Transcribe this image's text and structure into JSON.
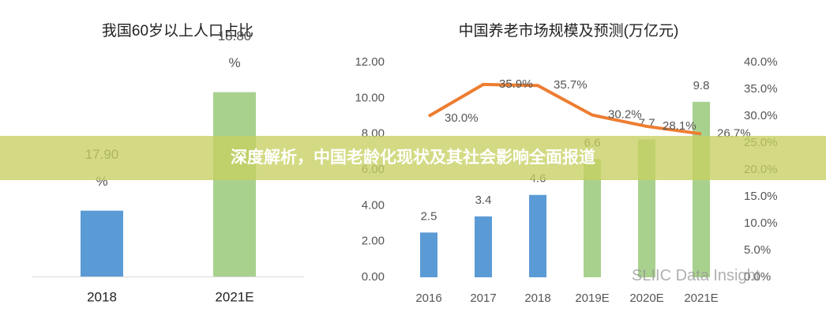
{
  "chart_data": [
    {
      "type": "bar",
      "title": "我国60岁以上人口占比",
      "categories": [
        "2018",
        "2021E"
      ],
      "values": [
        17.9,
        18.8
      ],
      "value_labels": [
        "17.90 %",
        "18.80 %"
      ],
      "colors": [
        "#5b9bd5",
        "#a9d18e"
      ],
      "ylim": [
        17.4,
        18.9
      ]
    },
    {
      "type": "bar",
      "title": "中国养老市场规模及预测(万亿元)",
      "categories": [
        "2016",
        "2017",
        "2018",
        "2019E",
        "2020E",
        "2021E"
      ],
      "series": [
        {
          "type": "bar",
          "colors": [
            "#5b9bd5",
            "#5b9bd5",
            "#5b9bd5",
            "#a9d18e",
            "#a9d18e",
            "#a9d18e"
          ],
          "values": [
            2.5,
            3.4,
            4.6,
            6.6,
            7.7,
            9.8
          ]
        },
        {
          "type": "line",
          "axis": "y2",
          "color": "#ed7d31",
          "values": [
            30.0,
            35.9,
            35.7,
            30.2,
            28.1,
            26.7
          ],
          "value_labels": [
            "30.0%",
            "35.9%",
            "35.7%",
            "30.2%",
            "28.1%",
            "26.7%"
          ]
        }
      ],
      "ylim": [
        0,
        12
      ],
      "yticks": [
        {
          "value": 0,
          "label": "0.00"
        },
        {
          "value": 2,
          "label": "2.00"
        },
        {
          "value": 4,
          "label": "4.00"
        },
        {
          "value": 6,
          "label": "6.00"
        },
        {
          "value": 8,
          "label": "8.00"
        },
        {
          "value": 10,
          "label": "10.00"
        },
        {
          "value": 12,
          "label": "12.00"
        }
      ],
      "y2lim": [
        0,
        40
      ],
      "y2ticks": [
        {
          "value": 0,
          "label": "0.0%"
        },
        {
          "value": 5,
          "label": "5.0%"
        },
        {
          "value": 10,
          "label": "10.0%"
        },
        {
          "value": 15,
          "label": "15.0%"
        },
        {
          "value": 20,
          "label": "20.0%"
        },
        {
          "value": 25,
          "label": "25.0%"
        },
        {
          "value": 30,
          "label": "30.0%"
        },
        {
          "value": 35,
          "label": "35.0%"
        },
        {
          "value": 40,
          "label": "40.0%"
        }
      ]
    }
  ],
  "banner": "深度解析，中国老龄化现状及其社会影响全面报道",
  "watermark": "SLIIC Data Insight"
}
